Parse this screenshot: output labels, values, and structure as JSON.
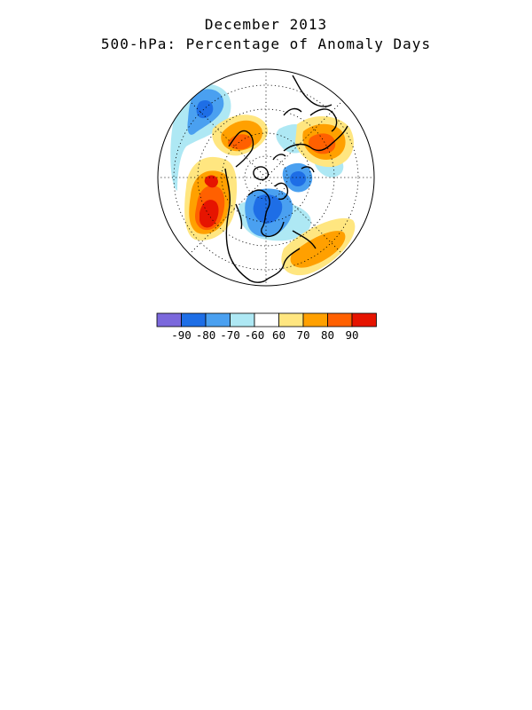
{
  "title": {
    "line1": "December 2013",
    "line2": "500-hPa: Percentage of Anomaly Days"
  },
  "map": {
    "projection": "north-polar-stereographic",
    "graticule": "dotted",
    "coastlines": "black",
    "anomaly_regions": [
      {
        "sign": "positive",
        "level": 90,
        "region": "Gulf of Alaska / NE Pacific"
      },
      {
        "sign": "positive",
        "level": 80,
        "region": "Siberia / Asia"
      },
      {
        "sign": "positive",
        "level": 80,
        "region": "Western Europe / Atlantic"
      },
      {
        "sign": "negative",
        "level": -80,
        "region": "Central Canada / Arctic"
      },
      {
        "sign": "negative",
        "level": -70,
        "region": "Greenland"
      },
      {
        "sign": "negative",
        "level": -70,
        "region": "North-central Asia"
      }
    ]
  },
  "legend": {
    "colors": [
      "#7b68dc",
      "#1e6ee6",
      "#4aa0f0",
      "#aee8f4",
      "#ffffff",
      "#ffe680",
      "#ffa000",
      "#ff6000",
      "#e61400"
    ],
    "labels": [
      "-90",
      "-80",
      "-70",
      "-60",
      "60",
      "70",
      "80",
      "90"
    ]
  }
}
